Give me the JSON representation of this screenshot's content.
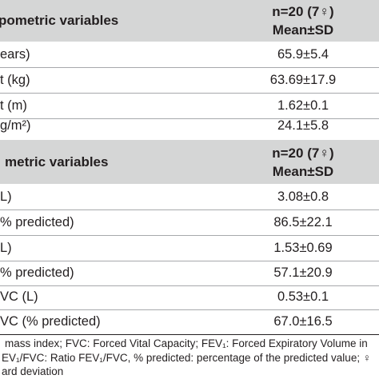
{
  "section1": {
    "title": "pometric variables",
    "col_line1": "n=20 (7♀)",
    "col_line2": "Mean±SD",
    "rows": [
      {
        "label": "ears)",
        "value": "65.9±5.4"
      },
      {
        "label": "t (kg)",
        "value": "63.69±17.9"
      },
      {
        "label": "t (m)",
        "value": "1.62±0.1"
      },
      {
        "label": "g/m²)",
        "value": "24.1±5.8"
      }
    ]
  },
  "section2": {
    "title": "metric variables",
    "col_line1": "n=20 (7♀)",
    "col_line2": "Mean±SD",
    "rows": [
      {
        "label": "L)",
        "value": "3.08±0.8"
      },
      {
        "label": "% predicted)",
        "value": "86.5±22.1"
      },
      {
        "label": "L)",
        "value": "1.53±0.69"
      },
      {
        "label": "% predicted)",
        "value": "57.1±20.9"
      },
      {
        "label": "VC (L)",
        "value": "0.53±0.1"
      },
      {
        "label": "VC (% predicted)",
        "value": "67.0±16.5"
      }
    ]
  },
  "footnote": {
    "line1": "mass index; FVC: Forced Vital Capacity; FEV₁: Forced Expiratory Volume in",
    "line2": "EV₁/FVC: Ratio FEV₁/FVC, % predicted: percentage of the predicted value; ♀",
    "line3": "ard deviation"
  }
}
